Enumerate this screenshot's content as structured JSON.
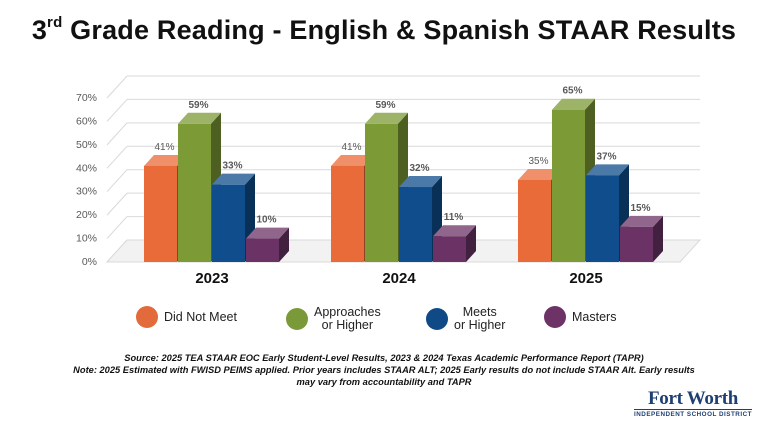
{
  "title": {
    "prefix": "3",
    "superscript": "rd",
    "rest": " Grade Reading - English & Spanish STAAR Results"
  },
  "chart_data": {
    "type": "bar",
    "style": "3d-clustered-column",
    "categories": [
      "2023",
      "2024",
      "2025"
    ],
    "series": [
      {
        "name": "Did Not Meet",
        "color": "#ea6b3a",
        "values": [
          41,
          41,
          35
        ]
      },
      {
        "name": "Approaches or Higher",
        "color": "#7c9a36",
        "values": [
          59,
          59,
          65
        ]
      },
      {
        "name": "Meets or Higher",
        "color": "#0f4d8c",
        "values": [
          33,
          32,
          37
        ]
      },
      {
        "name": "Masters",
        "color": "#6b3365",
        "values": [
          10,
          11,
          15
        ]
      }
    ],
    "data_labels": [
      [
        "41%",
        "59%",
        "33%",
        "10%"
      ],
      [
        "41%",
        "59%",
        "32%",
        "11%"
      ],
      [
        "35%",
        "65%",
        "37%",
        "15%"
      ]
    ],
    "yticks": [
      "0%",
      "10%",
      "20%",
      "30%",
      "40%",
      "50%",
      "60%",
      "70%"
    ],
    "ylim": [
      0,
      70
    ],
    "grid": true,
    "legend_position": "bottom"
  },
  "legend": [
    {
      "lines": [
        "Did Not Meet"
      ],
      "color": "#e26a3b"
    },
    {
      "lines": [
        "Approaches",
        "or Higher"
      ],
      "color": "#7a9a3a"
    },
    {
      "lines": [
        "Meets",
        "or Higher"
      ],
      "color": "#0f4a87"
    },
    {
      "lines": [
        "Masters"
      ],
      "color": "#6e3366"
    }
  ],
  "source": {
    "line1": "Source: 2025 TEA STAAR EOC Early Student-Level Results, 2023 & 2024 Texas Academic Performance Report (TAPR)",
    "line2": "Note: 2025 Estimated with FWISD PEIMS applied. Prior years includes STAAR ALT; 2025 Early results do not include STAAR Alt. Early results",
    "line3": "may vary from accountability and TAPR"
  },
  "logo": {
    "name": "Fort Worth",
    "subtitle": "INDEPENDENT SCHOOL DISTRICT"
  }
}
